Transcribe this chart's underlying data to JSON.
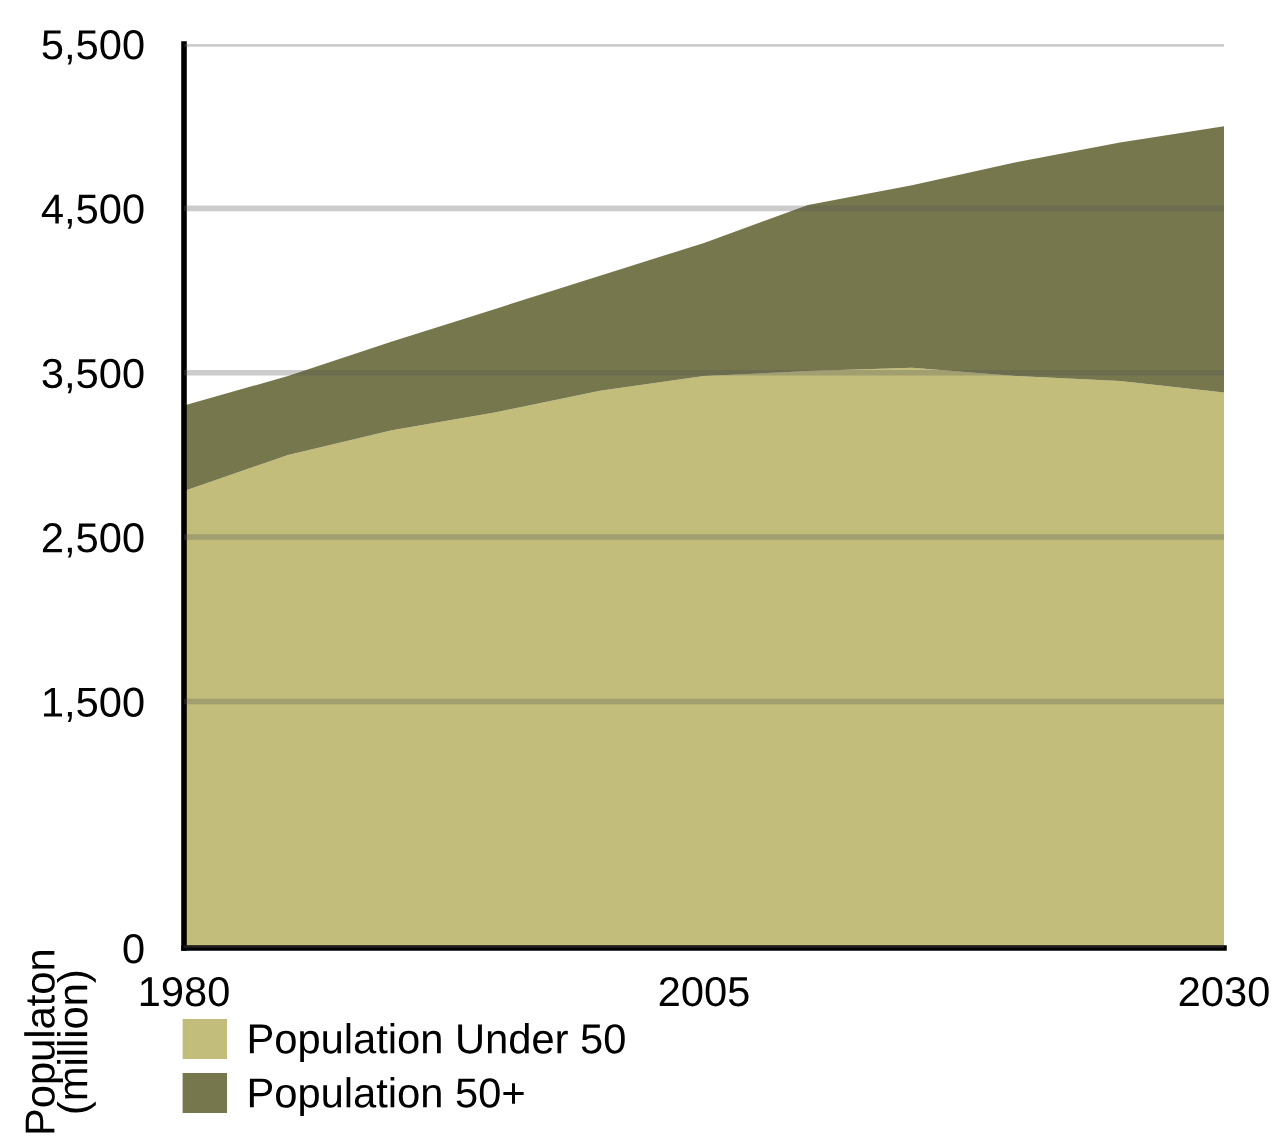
{
  "chart_data": {
    "type": "area",
    "stacked": true,
    "x": [
      1980,
      1985,
      1990,
      1995,
      2000,
      2005,
      2010,
      2015,
      2020,
      2025,
      2030
    ],
    "series": [
      {
        "name": "Population Under 50",
        "color": "#c2bd7a",
        "values": [
          2780,
          3000,
          3150,
          3260,
          3390,
          3480,
          3510,
          3530,
          3480,
          3450,
          3380
        ]
      },
      {
        "name": "Population 50+",
        "color": "#76774d",
        "values": [
          520,
          480,
          540,
          630,
          700,
          810,
          1010,
          1110,
          1300,
          1450,
          1620
        ]
      }
    ],
    "xlim": [
      1980,
      2030
    ],
    "xticks": [
      1980,
      2005,
      2030
    ],
    "ylim": [
      0,
      5500
    ],
    "yticks": [
      {
        "value": 0,
        "label": "0"
      },
      {
        "value": 1500,
        "label": "1,500"
      },
      {
        "value": 2500,
        "label": "2,500"
      },
      {
        "value": 3500,
        "label": "3,500"
      },
      {
        "value": 4500,
        "label": "4,500"
      },
      {
        "value": 5500,
        "label": "5,500"
      }
    ],
    "ylabel": "Populaton\n(million)",
    "grid": "y",
    "legend": "bottom"
  }
}
